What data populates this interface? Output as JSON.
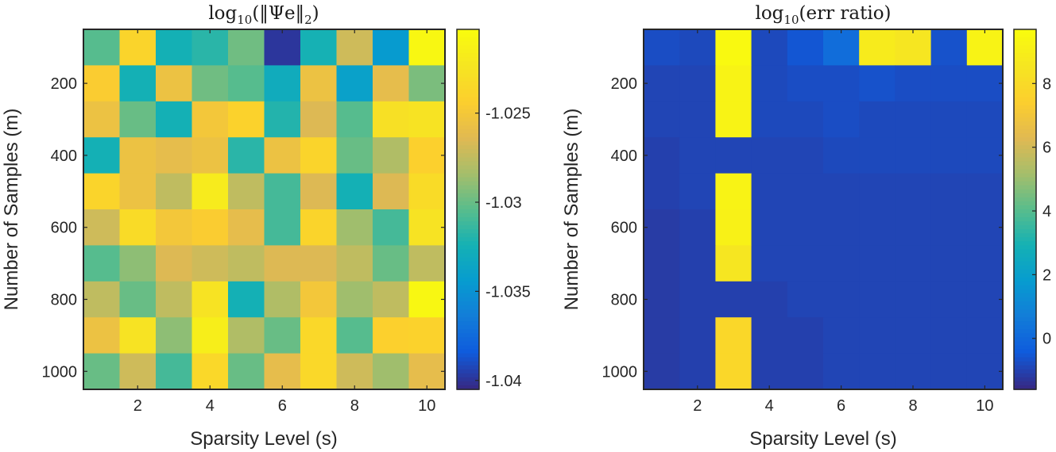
{
  "chart_data": [
    {
      "type": "heatmap",
      "title_main": "log",
      "title_sub": "10",
      "title_rest": "(‖Ψe‖",
      "title_sub2": "2",
      "title_end": ")",
      "xlabel": "Sparsity Level (s)",
      "ylabel": "Number of Samples (m)",
      "x_values": [
        1,
        2,
        3,
        4,
        5,
        6,
        7,
        8,
        9,
        10
      ],
      "y_values": [
        100,
        200,
        300,
        400,
        500,
        600,
        700,
        800,
        900,
        1000
      ],
      "x_ticks": [
        2,
        4,
        6,
        8,
        10
      ],
      "y_ticks": [
        200,
        400,
        600,
        800,
        1000
      ],
      "colorbar": {
        "min": -1.0405,
        "max": -1.0203,
        "ticks": [
          -1.04,
          -1.035,
          -1.03,
          -1.025
        ],
        "tick_labels": [
          "-1.04",
          "-1.035",
          "-1.03",
          "-1.025"
        ]
      },
      "z": [
        [
          -1.0305,
          -1.0238,
          -1.0325,
          -1.0318,
          -1.0298,
          -1.04,
          -1.0324,
          -1.027,
          -1.0345,
          -1.0207
        ],
        [
          -1.0245,
          -1.0325,
          -1.0255,
          -1.0298,
          -1.0305,
          -1.033,
          -1.0255,
          -1.034,
          -1.026,
          -1.0295
        ],
        [
          -1.0255,
          -1.03,
          -1.0325,
          -1.025,
          -1.024,
          -1.032,
          -1.0265,
          -1.0305,
          -1.0228,
          -1.0225
        ],
        [
          -1.0325,
          -1.0255,
          -1.026,
          -1.0255,
          -1.0318,
          -1.0255,
          -1.0238,
          -1.03,
          -1.028,
          -1.0242
        ],
        [
          -1.0238,
          -1.0255,
          -1.0275,
          -1.0218,
          -1.0275,
          -1.031,
          -1.0265,
          -1.0325,
          -1.0265,
          -1.0232
        ],
        [
          -1.027,
          -1.0232,
          -1.025,
          -1.0245,
          -1.026,
          -1.031,
          -1.0238,
          -1.0285,
          -1.031,
          -1.0225
        ],
        [
          -1.0305,
          -1.029,
          -1.0265,
          -1.027,
          -1.0275,
          -1.0265,
          -1.0265,
          -1.0275,
          -1.03,
          -1.0275
        ],
        [
          -1.0275,
          -1.03,
          -1.0275,
          -1.0225,
          -1.0325,
          -1.028,
          -1.025,
          -1.0285,
          -1.0275,
          -1.0207
        ],
        [
          -1.0255,
          -1.0225,
          -1.029,
          -1.0215,
          -1.028,
          -1.03,
          -1.0235,
          -1.0305,
          -1.0242,
          -1.024
        ],
        [
          -1.03,
          -1.027,
          -1.031,
          -1.0235,
          -1.03,
          -1.026,
          -1.0235,
          -1.027,
          -1.0285,
          -1.026
        ]
      ]
    },
    {
      "type": "heatmap",
      "title_main": "log",
      "title_sub": "10",
      "title_rest": "(err ratio)",
      "title_sub2": "",
      "title_end": "",
      "xlabel": "Sparsity Level (s)",
      "ylabel": "Number of Samples (m)",
      "x_values": [
        1,
        2,
        3,
        4,
        5,
        6,
        7,
        8,
        9,
        10
      ],
      "y_values": [
        100,
        200,
        300,
        400,
        500,
        600,
        700,
        800,
        900,
        1000
      ],
      "x_ticks": [
        2,
        4,
        6,
        8,
        10
      ],
      "y_ticks": [
        200,
        400,
        600,
        800,
        1000
      ],
      "colorbar": {
        "min": -1.6,
        "max": 9.7,
        "ticks": [
          0,
          2,
          4,
          6,
          8
        ],
        "tick_labels": [
          "0",
          "2",
          "4",
          "6",
          "8"
        ]
      },
      "z": [
        [
          -0.8,
          -0.9,
          9.6,
          -0.9,
          -0.6,
          0.1,
          8.9,
          8.6,
          -0.7,
          9.3
        ],
        [
          -1.0,
          -1.0,
          9.3,
          -0.9,
          -0.8,
          -0.8,
          -0.7,
          -0.8,
          -0.8,
          -0.8
        ],
        [
          -1.0,
          -1.0,
          9.3,
          -0.9,
          -0.9,
          -0.8,
          -0.9,
          -0.9,
          -0.9,
          -0.9
        ],
        [
          -1.1,
          -1.0,
          -1.0,
          -1.0,
          -1.0,
          -0.9,
          -0.9,
          -0.9,
          -0.9,
          -0.9
        ],
        [
          -1.1,
          -1.0,
          9.3,
          -1.0,
          -1.0,
          -1.0,
          -1.0,
          -1.0,
          -1.0,
          -1.0
        ],
        [
          -1.2,
          -1.1,
          9.2,
          -1.0,
          -1.0,
          -1.0,
          -1.0,
          -1.0,
          -1.0,
          -1.0
        ],
        [
          -1.2,
          -1.1,
          8.6,
          -1.0,
          -1.0,
          -1.0,
          -1.0,
          -1.0,
          -1.0,
          -1.0
        ],
        [
          -1.2,
          -1.1,
          -1.1,
          -1.1,
          -1.0,
          -1.0,
          -1.0,
          -1.0,
          -1.0,
          -1.0
        ],
        [
          -1.2,
          -1.1,
          7.9,
          -1.1,
          -1.1,
          -1.0,
          -1.0,
          -1.0,
          -1.0,
          -1.0
        ],
        [
          -1.2,
          -1.1,
          7.9,
          -1.1,
          -1.1,
          -1.0,
          -1.0,
          -1.0,
          -1.0,
          -1.0
        ]
      ]
    }
  ]
}
